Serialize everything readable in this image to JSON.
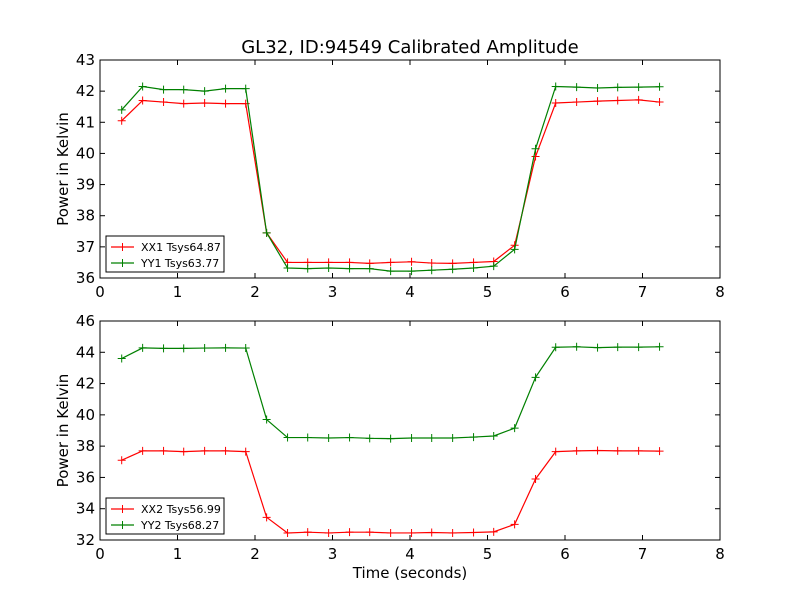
{
  "figure": {
    "title": "GL32, ID:94549 Calibrated Amplitude",
    "background": "#ffffff"
  },
  "chart_data": [
    {
      "type": "line",
      "title": "GL32, ID:94549 Calibrated Amplitude",
      "xlabel": "",
      "ylabel": "Power in Kelvin",
      "xlim": [
        0,
        8
      ],
      "ylim": [
        36,
        43
      ],
      "xticks": [
        0,
        1,
        2,
        3,
        4,
        5,
        6,
        7,
        8
      ],
      "yticks": [
        36,
        37,
        38,
        39,
        40,
        41,
        42,
        43
      ],
      "grid": false,
      "legend_position": "lower-left",
      "x": [
        0.28,
        0.55,
        0.82,
        1.08,
        1.35,
        1.62,
        1.88,
        2.15,
        2.42,
        2.68,
        2.95,
        3.22,
        3.48,
        3.75,
        4.02,
        4.28,
        4.55,
        4.82,
        5.08,
        5.35,
        5.62,
        5.88,
        6.15,
        6.42,
        6.68,
        6.95,
        7.22
      ],
      "series": [
        {
          "name": "XX1 Tsys64.87",
          "color": "#ff0000",
          "marker": "+",
          "values": [
            41.05,
            41.7,
            41.65,
            41.6,
            41.62,
            41.6,
            41.6,
            37.45,
            36.5,
            36.5,
            36.5,
            36.5,
            36.47,
            36.5,
            36.52,
            36.48,
            36.47,
            36.5,
            36.53,
            37.05,
            39.9,
            41.62,
            41.65,
            41.68,
            41.7,
            41.72,
            41.65
          ]
        },
        {
          "name": "YY1 Tsys63.77",
          "color": "#008000",
          "marker": "+",
          "values": [
            41.4,
            42.15,
            42.05,
            42.05,
            42.0,
            42.08,
            42.08,
            37.45,
            36.32,
            36.3,
            36.32,
            36.3,
            36.3,
            36.22,
            36.22,
            36.25,
            36.28,
            36.32,
            36.38,
            36.92,
            40.15,
            42.15,
            42.13,
            42.1,
            42.12,
            42.13,
            42.14
          ]
        }
      ]
    },
    {
      "type": "line",
      "title": "",
      "xlabel": "Time (seconds)",
      "ylabel": "Power in Kelvin",
      "xlim": [
        0,
        8
      ],
      "ylim": [
        32,
        46
      ],
      "xticks": [
        0,
        1,
        2,
        3,
        4,
        5,
        6,
        7,
        8
      ],
      "yticks": [
        32,
        34,
        36,
        38,
        40,
        42,
        44,
        46
      ],
      "grid": false,
      "legend_position": "lower-left",
      "x": [
        0.28,
        0.55,
        0.82,
        1.08,
        1.35,
        1.62,
        1.88,
        2.15,
        2.42,
        2.68,
        2.95,
        3.22,
        3.48,
        3.75,
        4.02,
        4.28,
        4.55,
        4.82,
        5.08,
        5.35,
        5.62,
        5.88,
        6.15,
        6.42,
        6.68,
        6.95,
        7.22
      ],
      "series": [
        {
          "name": "XX2 Tsys56.99",
          "color": "#ff0000",
          "marker": "+",
          "values": [
            37.1,
            37.7,
            37.7,
            37.65,
            37.7,
            37.7,
            37.65,
            33.45,
            32.45,
            32.5,
            32.45,
            32.5,
            32.5,
            32.45,
            32.45,
            32.48,
            32.45,
            32.48,
            32.52,
            33.0,
            35.9,
            37.65,
            37.7,
            37.72,
            37.7,
            37.7,
            37.68
          ]
        },
        {
          "name": "YY2 Tsys68.27",
          "color": "#008000",
          "marker": "+",
          "values": [
            43.6,
            44.28,
            44.25,
            44.25,
            44.27,
            44.28,
            44.27,
            39.7,
            38.55,
            38.55,
            38.52,
            38.55,
            38.5,
            38.48,
            38.52,
            38.52,
            38.52,
            38.58,
            38.65,
            39.15,
            42.4,
            44.32,
            44.35,
            44.3,
            44.33,
            44.33,
            44.35
          ]
        }
      ]
    }
  ]
}
